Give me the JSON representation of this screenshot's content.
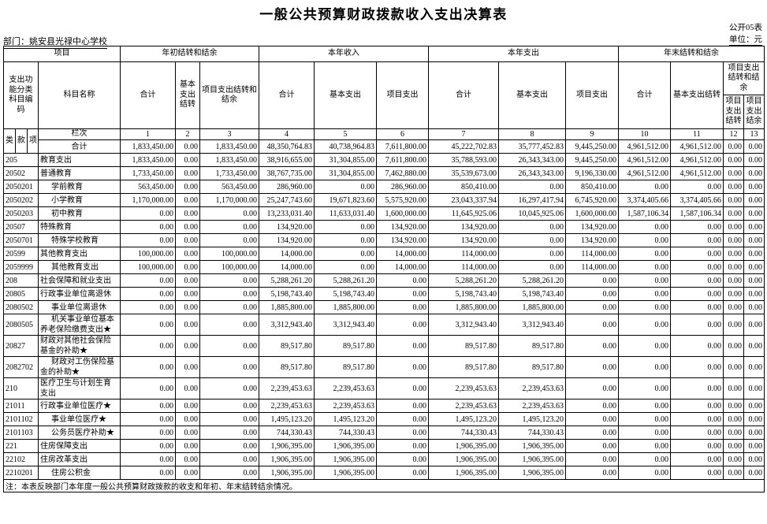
{
  "meta": {
    "title": "一般公共预算财政拨款收入支出决算表",
    "table_code": "公开05表",
    "department": "部门：姚安县光禄中心学校",
    "unit": "单位：元",
    "note": "注：本表反映部门本年度一般公共预算财政拨款的收支和年初、年末结转结余情况。"
  },
  "header": {
    "group_project": "项目",
    "group_begin_balance": "年初结转和结余",
    "group_income": "本年收入",
    "group_expense": "本年支出",
    "group_end_balance": "年末结转和结余",
    "col_code": "支出功能分类科目编码",
    "col_subject": "科目名称",
    "col_total": "合计",
    "col_basic_carry": "基本支出结转",
    "col_project_carry_balance": "项目支出结转和结余",
    "col_basic": "基本支出",
    "col_project": "项目支出",
    "col_project_carry": "项目支出结转",
    "col_project_balance": "项目支出结余",
    "code_sub": [
      "类",
      "款",
      "项"
    ],
    "lanci_label": "栏次",
    "lanci": [
      "1",
      "2",
      "3",
      "4",
      "5",
      "6",
      "7",
      "8",
      "9",
      "10",
      "11",
      "12",
      "13"
    ]
  },
  "rows": [
    {
      "code": "",
      "name": "合计",
      "indent": 0,
      "values": [
        "1,833,450.00",
        "0.00",
        "1,833,450.00",
        "48,350,764.83",
        "40,738,964.83",
        "7,611,800.00",
        "45,222,702.83",
        "35,777,452.83",
        "9,445,250.00",
        "4,961,512.00",
        "4,961,512.00",
        "0.00",
        "0.00"
      ]
    },
    {
      "code": "205",
      "name": "教育支出",
      "indent": 0,
      "values": [
        "1,833,450.00",
        "0.00",
        "1,833,450.00",
        "38,916,655.00",
        "31,304,855.00",
        "7,611,800.00",
        "35,788,593.00",
        "26,343,343.00",
        "9,445,250.00",
        "4,961,512.00",
        "4,961,512.00",
        "0.00",
        "0.00"
      ]
    },
    {
      "code": "20502",
      "name": "普通教育",
      "indent": 0,
      "values": [
        "1,733,450.00",
        "0.00",
        "1,733,450.00",
        "38,767,735.00",
        "31,304,855.00",
        "7,462,880.00",
        "35,539,673.00",
        "26,343,343.00",
        "9,196,330.00",
        "4,961,512.00",
        "4,961,512.00",
        "0.00",
        "0.00"
      ]
    },
    {
      "code": "2050201",
      "name": "学前教育",
      "indent": 1,
      "values": [
        "563,450.00",
        "0.00",
        "563,450.00",
        "286,960.00",
        "0.00",
        "286,960.00",
        "850,410.00",
        "0.00",
        "850,410.00",
        "0.00",
        "0.00",
        "0.00",
        "0.00"
      ]
    },
    {
      "code": "2050202",
      "name": "小学教育",
      "indent": 1,
      "values": [
        "1,170,000.00",
        "0.00",
        "1,170,000.00",
        "25,247,743.60",
        "19,671,823.60",
        "5,575,920.00",
        "23,043,337.94",
        "16,297,417.94",
        "6,745,920.00",
        "3,374,405.66",
        "3,374,405.66",
        "0.00",
        "0.00"
      ]
    },
    {
      "code": "2050203",
      "name": "初中教育",
      "indent": 1,
      "values": [
        "0.00",
        "0.00",
        "0.00",
        "13,233,031.40",
        "11,633,031.40",
        "1,600,000.00",
        "11,645,925.06",
        "10,045,925.06",
        "1,600,000.00",
        "1,587,106.34",
        "1,587,106.34",
        "0.00",
        "0.00"
      ]
    },
    {
      "code": "20507",
      "name": "特殊教育",
      "indent": 0,
      "values": [
        "0.00",
        "0.00",
        "0.00",
        "134,920.00",
        "0.00",
        "134,920.00",
        "134,920.00",
        "0.00",
        "134,920.00",
        "0.00",
        "0.00",
        "0.00",
        "0.00"
      ]
    },
    {
      "code": "2050701",
      "name": "特殊学校教育",
      "indent": 1,
      "values": [
        "0.00",
        "0.00",
        "0.00",
        "134,920.00",
        "0.00",
        "134,920.00",
        "134,920.00",
        "0.00",
        "134,920.00",
        "0.00",
        "0.00",
        "0.00",
        "0.00"
      ]
    },
    {
      "code": "20599",
      "name": "其他教育支出",
      "indent": 0,
      "values": [
        "100,000.00",
        "0.00",
        "100,000.00",
        "14,000.00",
        "0.00",
        "14,000.00",
        "114,000.00",
        "0.00",
        "114,000.00",
        "0.00",
        "0.00",
        "0.00",
        "0.00"
      ]
    },
    {
      "code": "2059999",
      "name": "其他教育支出",
      "indent": 1,
      "values": [
        "100,000.00",
        "0.00",
        "100,000.00",
        "14,000.00",
        "0.00",
        "14,000.00",
        "114,000.00",
        "0.00",
        "114,000.00",
        "0.00",
        "0.00",
        "0.00",
        "0.00"
      ]
    },
    {
      "code": "208",
      "name": "社会保障和就业支出",
      "indent": 0,
      "values": [
        "0.00",
        "0.00",
        "0.00",
        "5,288,261.20",
        "5,288,261.20",
        "0.00",
        "5,288,261.20",
        "5,288,261.20",
        "0.00",
        "0.00",
        "0.00",
        "0.00",
        "0.00"
      ]
    },
    {
      "code": "20805",
      "name": "行政事业单位离退休",
      "indent": 0,
      "values": [
        "0.00",
        "0.00",
        "0.00",
        "5,198,743.40",
        "5,198,743.40",
        "0.00",
        "5,198,743.40",
        "5,198,743.40",
        "0.00",
        "0.00",
        "0.00",
        "0.00",
        "0.00"
      ]
    },
    {
      "code": "2080502",
      "name": "事业单位离退休",
      "indent": 1,
      "values": [
        "0.00",
        "0.00",
        "0.00",
        "1,885,800.00",
        "1,885,800.00",
        "0.00",
        "1,885,800.00",
        "1,885,800.00",
        "0.00",
        "0.00",
        "0.00",
        "0.00",
        "0.00"
      ]
    },
    {
      "code": "2080505",
      "name": "机关事业单位基本养老保险缴费支出★",
      "indent": 1,
      "values": [
        "0.00",
        "0.00",
        "0.00",
        "3,312,943.40",
        "3,312,943.40",
        "0.00",
        "3,312,943.40",
        "3,312,943.40",
        "0.00",
        "0.00",
        "0.00",
        "0.00",
        "0.00"
      ]
    },
    {
      "code": "20827",
      "name": "财政对其他社会保险基金的补助★",
      "indent": 0,
      "values": [
        "0.00",
        "0.00",
        "0.00",
        "89,517.80",
        "89,517.80",
        "0.00",
        "89,517.80",
        "89,517.80",
        "0.00",
        "0.00",
        "0.00",
        "0.00",
        "0.00"
      ]
    },
    {
      "code": "2082702",
      "name": "财政对工伤保险基金的补助★",
      "indent": 1,
      "values": [
        "0.00",
        "0.00",
        "0.00",
        "89,517.80",
        "89,517.80",
        "0.00",
        "89,517.80",
        "89,517.80",
        "0.00",
        "0.00",
        "0.00",
        "0.00",
        "0.00"
      ]
    },
    {
      "code": "210",
      "name": "医疗卫生与计划生育支出",
      "indent": 0,
      "values": [
        "0.00",
        "0.00",
        "0.00",
        "2,239,453.63",
        "2,239,453.63",
        "0.00",
        "2,239,453.63",
        "2,239,453.63",
        "0.00",
        "0.00",
        "0.00",
        "0.00",
        "0.00"
      ]
    },
    {
      "code": "21011",
      "name": "行政事业单位医疗★",
      "indent": 0,
      "values": [
        "0.00",
        "0.00",
        "0.00",
        "2,239,453.63",
        "2,239,453.63",
        "0.00",
        "2,239,453.63",
        "2,239,453.63",
        "0.00",
        "0.00",
        "0.00",
        "0.00",
        "0.00"
      ]
    },
    {
      "code": "2101102",
      "name": "事业单位医疗★",
      "indent": 1,
      "values": [
        "0.00",
        "0.00",
        "0.00",
        "1,495,123.20",
        "1,495,123.20",
        "0.00",
        "1,495,123.20",
        "1,495,123.20",
        "0.00",
        "0.00",
        "0.00",
        "0.00",
        "0.00"
      ]
    },
    {
      "code": "2101103",
      "name": "公务员医疗补助★",
      "indent": 1,
      "values": [
        "0.00",
        "0.00",
        "0.00",
        "744,330.43",
        "744,330.43",
        "0.00",
        "744,330.43",
        "744,330.43",
        "0.00",
        "0.00",
        "0.00",
        "0.00",
        "0.00"
      ]
    },
    {
      "code": "221",
      "name": "住房保障支出",
      "indent": 0,
      "values": [
        "0.00",
        "0.00",
        "0.00",
        "1,906,395.00",
        "1,906,395.00",
        "0.00",
        "1,906,395.00",
        "1,906,395.00",
        "0.00",
        "0.00",
        "0.00",
        "0.00",
        "0.00"
      ]
    },
    {
      "code": "22102",
      "name": "住房改革支出",
      "indent": 0,
      "values": [
        "0.00",
        "0.00",
        "0.00",
        "1,906,395.00",
        "1,906,395.00",
        "0.00",
        "1,906,395.00",
        "1,906,395.00",
        "0.00",
        "0.00",
        "0.00",
        "0.00",
        "0.00"
      ]
    },
    {
      "code": "2210201",
      "name": "住房公积金",
      "indent": 1,
      "values": [
        "0.00",
        "0.00",
        "0.00",
        "1,906,395.00",
        "1,906,395.00",
        "0.00",
        "1,906,395.00",
        "1,906,395.00",
        "0.00",
        "0.00",
        "0.00",
        "0.00",
        "0.00"
      ]
    }
  ]
}
